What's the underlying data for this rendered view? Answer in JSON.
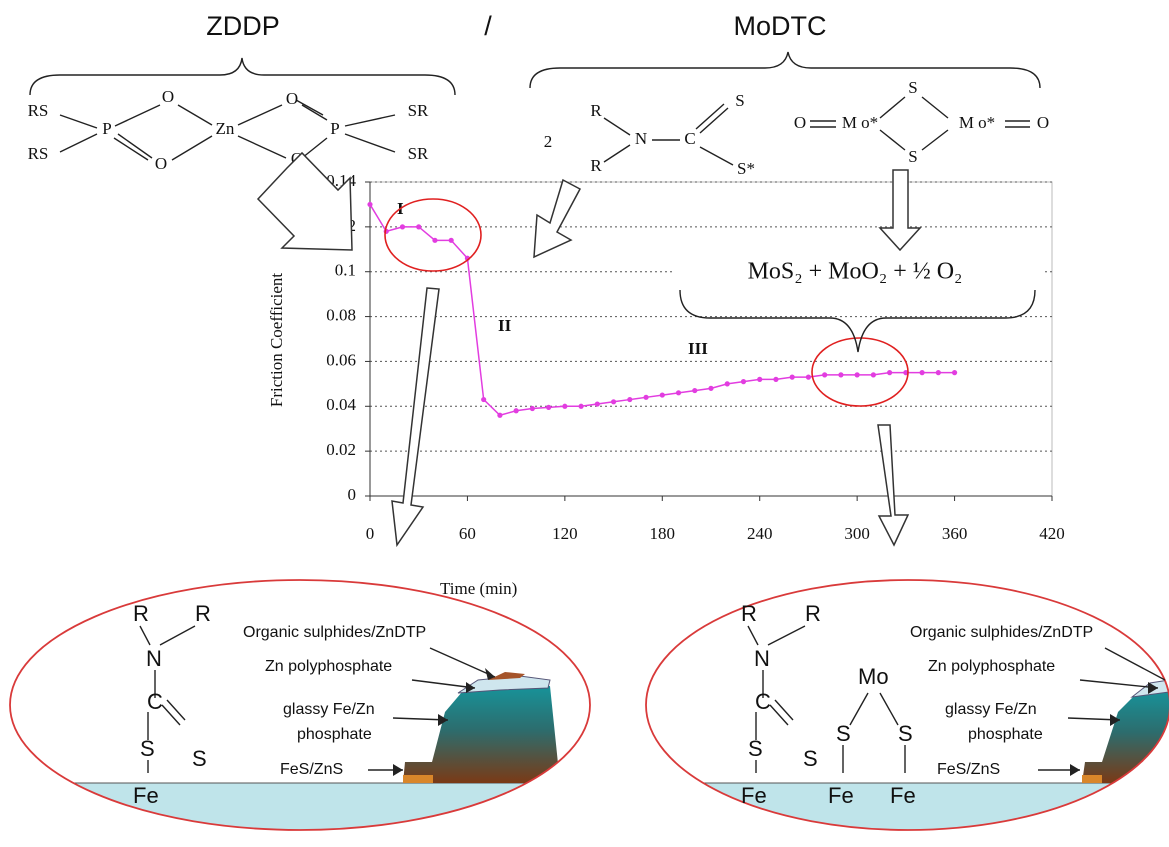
{
  "header": {
    "left": "ZDDP",
    "separator": "/",
    "right": "MoDTC"
  },
  "zddp": [
    "RS",
    "RS",
    "P",
    "O",
    "O",
    "Zn",
    "O",
    "O",
    "P",
    "SR",
    "SR"
  ],
  "modtc": [
    "2",
    "R",
    "R",
    "N",
    "C",
    "S",
    "S*"
  ],
  "mo_complex": [
    "O",
    "M o*",
    "S",
    "S",
    "M o*",
    "O"
  ],
  "reaction": "MoS₂ +  MoO₂ + ½ O₂",
  "chart_data": {
    "type": "line",
    "x": [
      0,
      10,
      20,
      30,
      40,
      50,
      60,
      70,
      80,
      90,
      100,
      110,
      120,
      130,
      140,
      150,
      160,
      170,
      180,
      190,
      200,
      210,
      220,
      230,
      240,
      250,
      260,
      270,
      280,
      290,
      300,
      310,
      320,
      330,
      340,
      350,
      360
    ],
    "values": [
      0.13,
      0.118,
      0.12,
      0.12,
      0.114,
      0.114,
      0.106,
      0.043,
      0.036,
      0.038,
      0.039,
      0.0395,
      0.04,
      0.04,
      0.041,
      0.042,
      0.043,
      0.044,
      0.045,
      0.046,
      0.047,
      0.048,
      0.05,
      0.051,
      0.052,
      0.052,
      0.053,
      0.053,
      0.054,
      0.054,
      0.054,
      0.054,
      0.055,
      0.055,
      0.055,
      0.055,
      0.055
    ],
    "color": "#e23de0",
    "xlim": [
      0,
      420
    ],
    "xticks": [
      0,
      60,
      120,
      180,
      240,
      300,
      360,
      420
    ],
    "ylim": [
      0,
      0.14
    ],
    "yticks": [
      0,
      0.02,
      0.04,
      0.06,
      0.08,
      0.1,
      0.12,
      0.14
    ],
    "grid": true,
    "x_label": "Time (min)",
    "y_label": "Friction Coefficient",
    "annotations": [
      "I",
      "II",
      "III"
    ]
  },
  "left_inset": {
    "atoms": [
      "R",
      "R",
      "N",
      "C",
      "S",
      "S",
      "Fe"
    ],
    "labels": [
      "Organic sulphides/ZnDTP",
      "Zn polyphosphate",
      "glassy Fe/Zn",
      "phosphate",
      "FeS/ZnS"
    ]
  },
  "right_inset": {
    "atoms": [
      "R",
      "R",
      "N",
      "C",
      "S",
      "S",
      "Fe",
      "Mo",
      "S",
      "S",
      "Fe",
      "Fe"
    ],
    "labels": [
      "Organic sulphides/ZnDTP",
      "Zn polyphosphate",
      "glassy Fe/Zn",
      "phosphate",
      "FeS/ZnS"
    ]
  }
}
